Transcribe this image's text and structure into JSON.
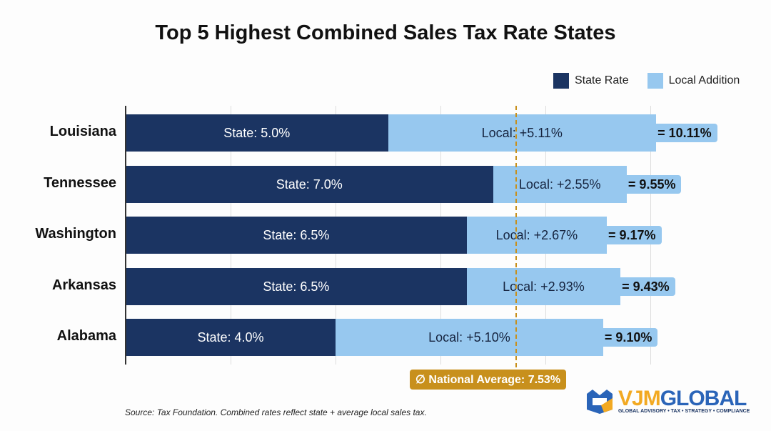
{
  "chart_data": {
    "type": "bar",
    "orientation": "horizontal",
    "stacked": true,
    "title": "Top 5 Highest Combined Sales Tax Rate States",
    "categories": [
      "Louisiana",
      "Tennessee",
      "Washington",
      "Arkansas",
      "Alabama"
    ],
    "series": [
      {
        "name": "State Rate",
        "values": [
          5.0,
          7.0,
          6.5,
          6.5,
          4.0
        ],
        "color": "#1b3462",
        "labels": [
          "State: 5.0%",
          "State: 7.0%",
          "State: 6.5%",
          "State: 6.5%",
          "State: 4.0%"
        ]
      },
      {
        "name": "Local Addition",
        "values": [
          5.11,
          2.55,
          2.67,
          2.93,
          5.1
        ],
        "color": "#97c8ef",
        "labels": [
          "Local: +5.11%",
          "Local: +2.55%",
          "Local: +2.67%",
          "Local: +2.93%",
          "Local: +5.10%"
        ]
      }
    ],
    "totals": [
      "= 10.11%",
      "= 9.55%",
      "= 9.17%",
      "= 9.43%",
      "= 9.10%"
    ],
    "xlim": [
      0,
      10.5
    ],
    "grid": true,
    "gridlines": [
      2,
      4,
      6,
      8,
      10
    ],
    "legend": "top-right",
    "reference_line": {
      "value": 7.53,
      "label": "National Average: 7.53%",
      "icon": "average-symbol-icon",
      "color": "#c8901c"
    }
  },
  "footnote": "Source: Tax Foundation. Combined rates reflect state + average local sales tax.",
  "logo": {
    "name": "VJMGLOBAL",
    "tagline": "GLOBAL ADVISORY • TAX • STRATEGY • COMPLIANCE"
  }
}
